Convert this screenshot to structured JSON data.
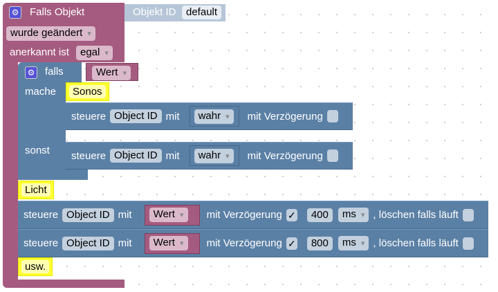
{
  "event_block": {
    "title": "Falls Objekt",
    "trigger": "wurde geändert",
    "ack_label": "anerkannt ist",
    "ack_value": "egal",
    "object_label": "Objekt ID",
    "object_value": "default"
  },
  "if_block": {
    "title": "falls",
    "condition": "Wert",
    "do_label": "mache",
    "else_label": "sonst"
  },
  "comments": [
    "Sonos",
    "Licht",
    "usw."
  ],
  "control_rows": [
    {
      "label": "steuere",
      "object": "Object ID",
      "with": "mit",
      "value": "wahr",
      "delay_label": "mit Verzögerung",
      "delay_checked": false
    },
    {
      "label": "steuere",
      "object": "Object ID",
      "with": "mit",
      "value": "wahr",
      "delay_label": "mit Verzögerung",
      "delay_checked": false
    },
    {
      "label": "steuere",
      "object": "Object ID",
      "with": "mit",
      "value": "Wert",
      "delay_label": "mit Verzögerung",
      "delay_checked": true,
      "delay": "400",
      "unit": "ms",
      "clear_label": ", löschen falls läuft",
      "clear_checked": false
    },
    {
      "label": "steuere",
      "object": "Object ID",
      "with": "mit",
      "value": "Wert",
      "delay_label": "mit Verzögerung",
      "delay_checked": true,
      "delay": "800",
      "unit": "ms",
      "clear_label": ", löschen falls läuft",
      "clear_checked": false
    }
  ],
  "check_glyph": "✓",
  "colors": {
    "event": "#a55b80",
    "control": "#5b80a5",
    "comment": "#ffff33"
  }
}
